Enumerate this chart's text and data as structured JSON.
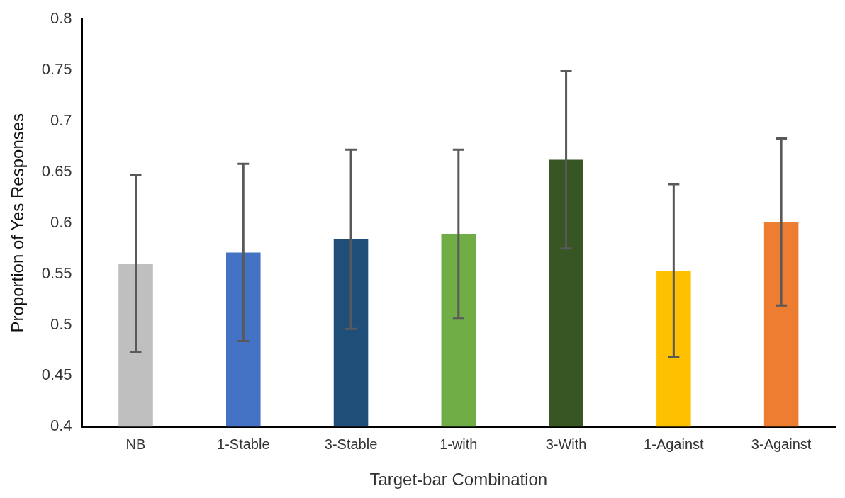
{
  "chart_data": {
    "type": "bar",
    "xlabel": "Target-bar Combination",
    "ylabel": "Proportion of Yes Responses",
    "categories": [
      "NB",
      "1-Stable",
      "3-Stable",
      "1-with",
      "3-With",
      "1-Against",
      "3-Against"
    ],
    "values": [
      0.56,
      0.571,
      0.584,
      0.589,
      0.662,
      0.553,
      0.601
    ],
    "errors": [
      0.087,
      0.087,
      0.088,
      0.083,
      0.087,
      0.085,
      0.082
    ],
    "colors": [
      "#bfbfbf",
      "#4472c4",
      "#1f4e79",
      "#70ad47",
      "#375623",
      "#ffc000",
      "#ed7d31"
    ],
    "ylim": [
      0.4,
      0.8
    ],
    "yticks": [
      0.4,
      0.45,
      0.5,
      0.55,
      0.6,
      0.65,
      0.7,
      0.75,
      0.8
    ],
    "grid": false,
    "legend": false
  }
}
